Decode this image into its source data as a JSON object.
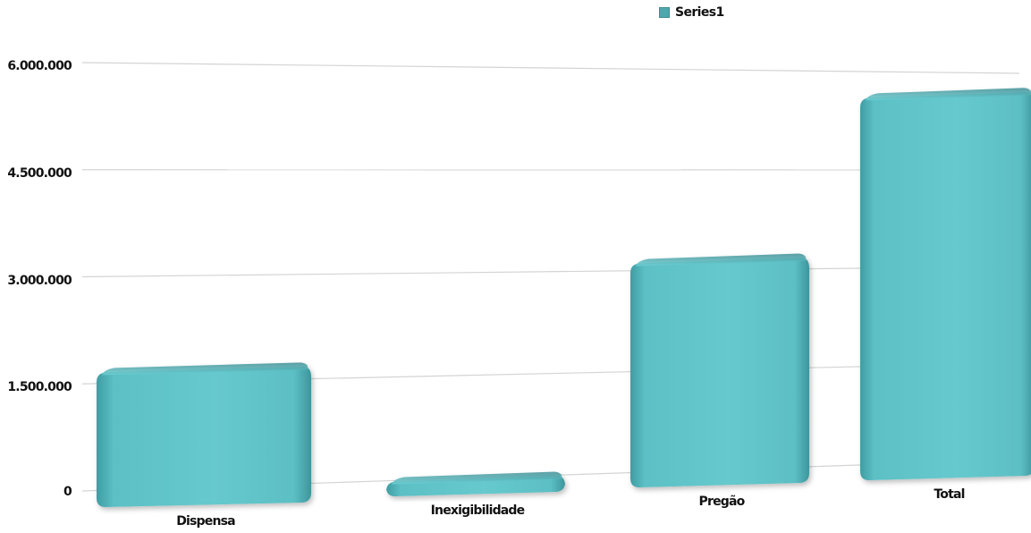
{
  "legend": {
    "series_name": "Series1",
    "swatch_color": "#61c3c7"
  },
  "chart_data": {
    "type": "bar",
    "categories": [
      "Dispensa",
      "Inexigibilidade",
      "Pregão",
      "Total"
    ],
    "series": [
      {
        "name": "Series1",
        "values": [
          1950000,
          270000,
          3200000,
          5420000
        ],
        "color": "#61c3c7"
      }
    ],
    "yticks": [
      "0",
      "1.500.000",
      "3.000.000",
      "4.500.000",
      "6.000.000"
    ],
    "ytick_values": [
      0,
      1500000,
      3000000,
      4500000,
      6000000
    ],
    "ylim": [
      0,
      6000000
    ],
    "grid": true,
    "legend_position": "top"
  }
}
